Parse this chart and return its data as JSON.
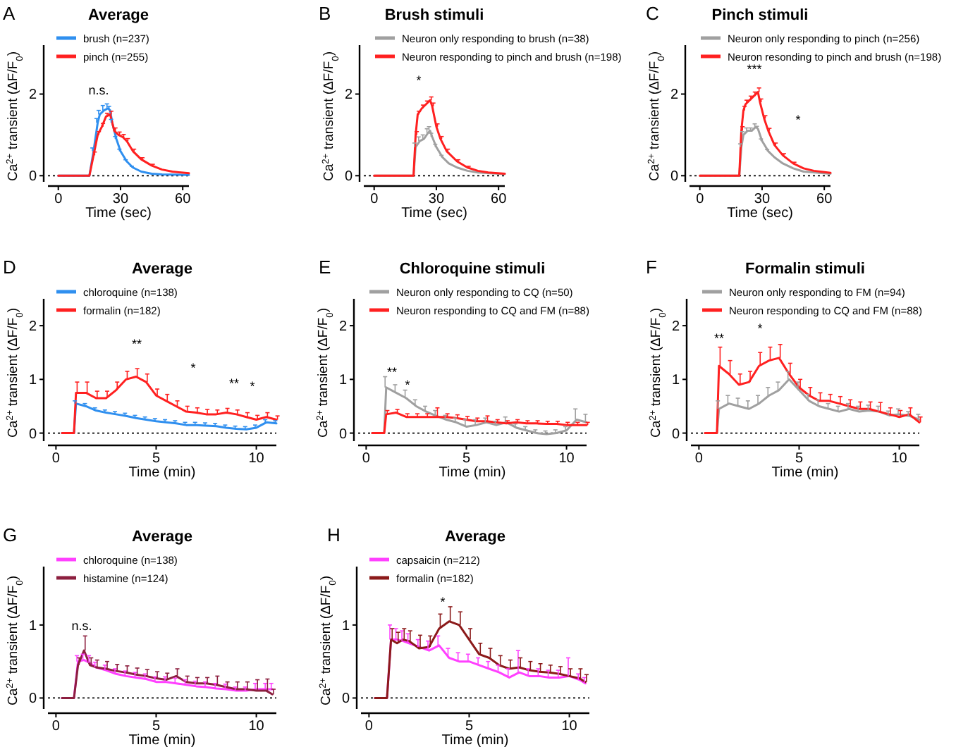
{
  "chart_data": [
    {
      "type": "line",
      "title": "Average",
      "xlabel": "Time (sec)",
      "ylabel": "Ca$^{2+}$ transient (ΔF/F$_{0}$)",
      "xlim": [
        -5,
        63
      ],
      "ylim": [
        -0.15,
        3.2
      ],
      "xticks": [
        0,
        30,
        60
      ],
      "yticks": [
        0,
        2
      ],
      "legend": "top left",
      "grid": false,
      "ref_lines": [
        {
          "axis": "y",
          "value": 0,
          "line_style": "dotted",
          "color": "#000000"
        }
      ],
      "annotations": [
        "A",
        "n.s."
      ],
      "series": [
        {
          "name": "brush (n=237)",
          "color": "#2f8fef",
          "x": [
            0,
            15,
            17,
            19,
            20,
            22,
            24,
            25,
            26,
            28,
            30,
            33,
            36,
            40,
            45,
            50,
            63
          ],
          "values": [
            0,
            0,
            0.6,
            1.3,
            1.5,
            1.6,
            1.65,
            1.6,
            1.3,
            0.9,
            0.6,
            0.35,
            0.2,
            0.1,
            0.05,
            0.03,
            0.02
          ],
          "errors": [
            null,
            null,
            [
              0.6,
              0.68
            ],
            [
              1.3,
              1.4
            ],
            [
              1.5,
              1.6
            ],
            [
              1.6,
              1.72
            ],
            [
              1.65,
              1.76
            ],
            [
              1.6,
              1.7
            ],
            [
              1.3,
              1.38
            ],
            [
              0.9,
              0.96
            ],
            [
              0.6,
              0.65
            ],
            [
              0.35,
              0.39
            ],
            [
              0.2,
              0.23
            ],
            null,
            null,
            null,
            null
          ]
        },
        {
          "name": "pinch (n=255)",
          "color": "#ff2020",
          "x": [
            0,
            15,
            17,
            19,
            21,
            23,
            25,
            27,
            29,
            31,
            33,
            36,
            40,
            45,
            50,
            55,
            63
          ],
          "values": [
            0,
            0,
            0.5,
            1.0,
            1.2,
            1.45,
            1.5,
            1.1,
            1.0,
            0.95,
            0.85,
            0.6,
            0.4,
            0.25,
            0.15,
            0.1,
            0.06
          ],
          "errors": [
            null,
            null,
            [
              0.5,
              0.58
            ],
            [
              1.0,
              1.08
            ],
            [
              1.2,
              1.28
            ],
            [
              1.45,
              1.53
            ],
            [
              1.5,
              1.58
            ],
            [
              1.1,
              1.17
            ],
            [
              1.0,
              1.07
            ],
            [
              0.95,
              1.01
            ],
            [
              0.85,
              0.91
            ],
            [
              0.6,
              0.65
            ],
            [
              0.4,
              0.44
            ],
            [
              0.25,
              0.28
            ],
            null,
            null,
            null
          ]
        }
      ]
    },
    {
      "type": "line",
      "title": "Brush stimuli",
      "xlabel": "Time (sec)",
      "ylabel": "Ca$^{2+}$ transient (ΔF/F$_{0}$)",
      "xlim": [
        -5,
        63
      ],
      "ylim": [
        -0.15,
        3.2
      ],
      "xticks": [
        0,
        30,
        60
      ],
      "yticks": [
        0,
        2
      ],
      "legend": "top right",
      "grid": false,
      "ref_lines": [
        {
          "axis": "y",
          "value": 0,
          "line_style": "dotted",
          "color": "#000000"
        }
      ],
      "annotations": [
        "B",
        "*"
      ],
      "series": [
        {
          "name": "Neuron only responding to brush (n=38)",
          "color": "#a0a0a0",
          "x": [
            0,
            19,
            20,
            22,
            24,
            26,
            27,
            28,
            30,
            33,
            36,
            40,
            45,
            50,
            63
          ],
          "values": [
            0,
            0,
            0.7,
            0.85,
            0.9,
            1.05,
            1.1,
            0.95,
            0.7,
            0.45,
            0.3,
            0.2,
            0.12,
            0.08,
            0.04
          ],
          "errors": [
            null,
            null,
            [
              0.7,
              0.8
            ],
            [
              0.85,
              0.95
            ],
            [
              0.9,
              1.0
            ],
            [
              1.05,
              1.15
            ],
            [
              1.1,
              1.2
            ],
            [
              0.95,
              1.04
            ],
            [
              0.7,
              0.77
            ],
            [
              0.45,
              0.5
            ],
            null,
            null,
            null,
            null,
            null
          ]
        },
        {
          "name": "Neuron responding to pinch and brush (n=198)",
          "color": "#ff2020",
          "x": [
            0,
            19,
            20,
            21,
            23,
            25,
            27,
            28,
            30,
            32,
            35,
            40,
            45,
            50,
            55,
            63
          ],
          "values": [
            0,
            0,
            1.0,
            1.5,
            1.65,
            1.75,
            1.85,
            1.7,
            1.2,
            0.9,
            0.6,
            0.35,
            0.2,
            0.12,
            0.08,
            0.05
          ],
          "errors": [
            null,
            null,
            [
              1.0,
              1.08
            ],
            [
              1.5,
              1.58
            ],
            [
              1.65,
              1.73
            ],
            [
              1.75,
              1.83
            ],
            [
              1.85,
              1.93
            ],
            [
              1.7,
              1.78
            ],
            [
              1.2,
              1.27
            ],
            [
              0.9,
              0.96
            ],
            [
              0.6,
              0.65
            ],
            [
              0.35,
              0.39
            ],
            [
              0.2,
              0.23
            ],
            null,
            null,
            null
          ]
        }
      ]
    },
    {
      "type": "line",
      "title": "Pinch stimuli",
      "xlabel": "Time (sec)",
      "ylabel": "Ca$^{2+}$ transient (ΔF/F$_{0}$)",
      "xlim": [
        -5,
        63
      ],
      "ylim": [
        -0.15,
        3.2
      ],
      "xticks": [
        0,
        30,
        60
      ],
      "yticks": [
        0,
        2
      ],
      "legend": "top right",
      "grid": false,
      "ref_lines": [
        {
          "axis": "y",
          "value": 0,
          "line_style": "dotted",
          "color": "#000000"
        }
      ],
      "annotations": [
        "C",
        "***",
        "*"
      ],
      "series": [
        {
          "name": "Neuron only responding to pinch (n=256)",
          "color": "#a0a0a0",
          "x": [
            0,
            19,
            20,
            21,
            23,
            25,
            27,
            28,
            30,
            33,
            36,
            40,
            45,
            50,
            63
          ],
          "values": [
            0,
            0,
            0.7,
            1.0,
            1.1,
            1.1,
            1.2,
            1.15,
            0.85,
            0.6,
            0.45,
            0.3,
            0.18,
            0.1,
            0.05
          ],
          "errors": [
            null,
            null,
            [
              0.7,
              0.78
            ],
            [
              1.0,
              1.08
            ],
            [
              1.1,
              1.17
            ],
            [
              1.1,
              1.17
            ],
            [
              1.2,
              1.27
            ],
            [
              1.15,
              1.21
            ],
            [
              0.85,
              0.9
            ],
            [
              0.6,
              0.64
            ],
            null,
            null,
            null,
            null,
            null
          ]
        },
        {
          "name": "Neuron resonding to pinch and brush (n=198)",
          "color": "#ff2020",
          "x": [
            0,
            19,
            20,
            21,
            22,
            24,
            26,
            28,
            29,
            31,
            33,
            36,
            40,
            45,
            50,
            55,
            63
          ],
          "values": [
            0,
            0,
            1.1,
            1.6,
            1.75,
            1.85,
            1.95,
            2.05,
            1.8,
            1.4,
            1.1,
            0.75,
            0.5,
            0.3,
            0.18,
            0.12,
            0.07
          ],
          "errors": [
            null,
            null,
            [
              1.1,
              1.2
            ],
            [
              1.6,
              1.7
            ],
            [
              1.75,
              1.85
            ],
            [
              1.85,
              1.95
            ],
            [
              1.95,
              2.05
            ],
            [
              2.05,
              2.15
            ],
            [
              1.8,
              1.88
            ],
            [
              1.4,
              1.47
            ],
            [
              1.1,
              1.16
            ],
            [
              0.75,
              0.8
            ],
            [
              0.5,
              0.54
            ],
            [
              0.3,
              0.33
            ],
            null,
            null,
            null
          ]
        }
      ]
    },
    {
      "type": "line",
      "title": "Average",
      "xlabel": "Time (min)",
      "ylabel": "Ca$^{2+}$ transient (ΔF/F$_{0}$)",
      "xlim": [
        -0.4,
        11
      ],
      "ylim": [
        -0.15,
        2.5
      ],
      "xticks": [
        0,
        5,
        10
      ],
      "yticks": [
        0,
        1,
        2
      ],
      "legend": "top left",
      "grid": false,
      "ref_lines": [
        {
          "axis": "y",
          "value": 0,
          "line_style": "dotted",
          "color": "#000000"
        }
      ],
      "annotations": [
        "D",
        "**",
        "*",
        "**",
        "*"
      ],
      "x": [
        0.3,
        0.9,
        1.0,
        1.5,
        2,
        2.5,
        3,
        3.5,
        4,
        4.5,
        5,
        5.5,
        6,
        6.5,
        7,
        7.5,
        8,
        8.5,
        9,
        9.5,
        10,
        10.5,
        11
      ],
      "series": [
        {
          "name": "chloroquine (n=138)",
          "color": "#2f8fef",
          "values": [
            0,
            0,
            0.55,
            0.5,
            0.42,
            0.38,
            0.35,
            0.32,
            0.28,
            0.25,
            0.22,
            0.2,
            0.18,
            0.15,
            0.15,
            0.14,
            0.13,
            0.1,
            0.08,
            0.07,
            0.1,
            0.2,
            0.18
          ],
          "errors": [
            null,
            null,
            [
              0.55,
              0.6
            ],
            [
              0.5,
              0.55
            ],
            [
              0.42,
              0.47
            ],
            [
              0.38,
              0.43
            ],
            [
              0.35,
              0.4
            ],
            [
              0.32,
              0.37
            ],
            [
              0.28,
              0.33
            ],
            [
              0.25,
              0.3
            ],
            [
              0.22,
              0.27
            ],
            [
              0.2,
              0.25
            ],
            [
              0.18,
              0.23
            ],
            [
              0.15,
              0.2
            ],
            [
              0.15,
              0.2
            ],
            [
              0.14,
              0.19
            ],
            [
              0.13,
              0.18
            ],
            [
              0.1,
              0.15
            ],
            [
              0.08,
              0.13
            ],
            [
              0.07,
              0.12
            ],
            [
              0.1,
              0.15
            ],
            [
              0.2,
              0.25
            ],
            [
              0.18,
              0.23
            ]
          ]
        },
        {
          "name": "formalin (n=182)",
          "color": "#ff2020",
          "values": [
            0,
            0,
            0.75,
            0.75,
            0.65,
            0.65,
            0.8,
            1.0,
            1.05,
            0.95,
            0.7,
            0.6,
            0.5,
            0.4,
            0.38,
            0.35,
            0.35,
            0.38,
            0.35,
            0.3,
            0.25,
            0.3,
            0.25
          ],
          "errors": [
            null,
            null,
            [
              0.75,
              0.95
            ],
            [
              0.75,
              0.95
            ],
            [
              0.65,
              0.78
            ],
            [
              0.65,
              0.78
            ],
            [
              0.8,
              0.95
            ],
            [
              1.0,
              1.15
            ],
            [
              1.05,
              1.2
            ],
            [
              0.95,
              1.1
            ],
            [
              0.7,
              0.82
            ],
            [
              0.6,
              0.72
            ],
            [
              0.5,
              0.6
            ],
            [
              0.4,
              0.5
            ],
            [
              0.38,
              0.47
            ],
            [
              0.35,
              0.44
            ],
            [
              0.35,
              0.43
            ],
            [
              0.38,
              0.46
            ],
            [
              0.35,
              0.43
            ],
            [
              0.3,
              0.38
            ],
            [
              0.25,
              0.33
            ],
            [
              0.3,
              0.38
            ],
            [
              0.25,
              0.32
            ]
          ]
        }
      ]
    },
    {
      "type": "line",
      "title": "Chloroquine stimuli",
      "xlabel": "Time (min)",
      "ylabel": "Ca$^{2+}$ transient (ΔF/F$_{0}$)",
      "xlim": [
        -0.4,
        11
      ],
      "ylim": [
        -0.15,
        2.5
      ],
      "xticks": [
        0,
        5,
        10
      ],
      "yticks": [
        0,
        1,
        2
      ],
      "legend": "top right",
      "grid": false,
      "ref_lines": [
        {
          "axis": "y",
          "value": 0,
          "line_style": "dotted",
          "color": "#000000"
        }
      ],
      "annotations": [
        "E",
        "**",
        "*"
      ],
      "x": [
        0.3,
        0.9,
        1.0,
        1.5,
        2,
        2.5,
        3,
        3.5,
        4,
        4.5,
        5,
        5.5,
        6,
        6.5,
        7,
        7.5,
        8,
        8.5,
        9,
        9.5,
        10,
        10.5,
        11
      ],
      "series": [
        {
          "name": "Neuron only responding to CQ (n=50)",
          "color": "#a0a0a0",
          "values": [
            0,
            0,
            0.85,
            0.75,
            0.65,
            0.5,
            0.4,
            0.32,
            0.25,
            0.2,
            0.12,
            0.15,
            0.2,
            0.15,
            0.2,
            0.1,
            0.05,
            0,
            -0.02,
            0,
            0.05,
            0.25,
            0.2
          ],
          "errors": [
            null,
            null,
            [
              0.85,
              1.05
            ],
            [
              0.75,
              0.9
            ],
            [
              0.65,
              0.8
            ],
            [
              0.5,
              0.62
            ],
            [
              0.4,
              0.5
            ],
            [
              0.32,
              0.42
            ],
            [
              0.25,
              0.33
            ],
            [
              0.2,
              0.28
            ],
            [
              0.12,
              0.25
            ],
            [
              0.15,
              0.25
            ],
            [
              0.2,
              0.28
            ],
            [
              0.15,
              0.22
            ],
            [
              0.2,
              0.3
            ],
            [
              0.1,
              0.17
            ],
            [
              0.05,
              0.12
            ],
            [
              0,
              0.06
            ],
            [
              -0.02,
              0.04
            ],
            [
              0,
              0.06
            ],
            [
              0.05,
              0.12
            ],
            [
              0.25,
              0.45
            ],
            [
              0.2,
              0.35
            ]
          ]
        },
        {
          "name": "Neuron responding to CQ and FM (n=88)",
          "color": "#ff2020",
          "values": [
            0,
            0,
            0.35,
            0.38,
            0.3,
            0.3,
            0.3,
            0.3,
            0.3,
            0.28,
            0.25,
            0.22,
            0.22,
            0.2,
            0.18,
            0.2,
            0.18,
            0.18,
            0.17,
            0.17,
            0.15,
            0.15,
            0.15
          ],
          "errors": [
            null,
            null,
            [
              0.35,
              0.42
            ],
            [
              0.38,
              0.44
            ],
            [
              0.3,
              0.36
            ],
            [
              0.3,
              0.36
            ],
            [
              0.3,
              0.36
            ],
            [
              0.3,
              0.47
            ],
            [
              0.3,
              0.36
            ],
            [
              0.28,
              0.34
            ],
            [
              0.25,
              0.31
            ],
            [
              0.22,
              0.28
            ],
            [
              0.22,
              0.32
            ],
            [
              0.2,
              0.25
            ],
            [
              0.18,
              0.23
            ],
            [
              0.2,
              0.25
            ],
            [
              0.18,
              0.23
            ],
            [
              0.18,
              0.23
            ],
            [
              0.17,
              0.22
            ],
            [
              0.17,
              0.22
            ],
            [
              0.15,
              0.2
            ],
            [
              0.15,
              0.2
            ],
            [
              0.15,
              0.2
            ]
          ]
        }
      ]
    },
    {
      "type": "line",
      "title": "Formalin stimuli",
      "xlabel": "Time (min)",
      "ylabel": "Ca$^{2+}$ transient (ΔF/F$_{0}$)",
      "xlim": [
        -0.4,
        11
      ],
      "ylim": [
        -0.15,
        2.5
      ],
      "xticks": [
        0,
        5,
        10
      ],
      "yticks": [
        0,
        1,
        2
      ],
      "legend": "top right",
      "grid": false,
      "ref_lines": [
        {
          "axis": "y",
          "value": 0,
          "line_style": "dotted",
          "color": "#000000"
        }
      ],
      "annotations": [
        "F",
        "**",
        "*"
      ],
      "x": [
        0.3,
        0.9,
        1.0,
        1.5,
        2,
        2.5,
        3,
        3.5,
        4,
        4.5,
        5,
        5.5,
        6,
        6.5,
        7,
        7.5,
        8,
        8.5,
        9,
        9.5,
        10,
        10.5,
        11
      ],
      "series": [
        {
          "name": "Neuron only responding to FM (n=94)",
          "color": "#a0a0a0",
          "values": [
            0,
            0,
            0.45,
            0.55,
            0.5,
            0.45,
            0.55,
            0.7,
            0.8,
            1.0,
            0.8,
            0.6,
            0.5,
            0.45,
            0.4,
            0.45,
            0.4,
            0.42,
            0.4,
            0.33,
            0.35,
            0.32,
            0.25
          ],
          "errors": [
            null,
            null,
            [
              0.45,
              0.6
            ],
            [
              0.55,
              0.7
            ],
            [
              0.5,
              0.65
            ],
            [
              0.45,
              0.6
            ],
            [
              0.55,
              0.7
            ],
            [
              0.7,
              0.85
            ],
            [
              0.8,
              0.95
            ],
            [
              1.0,
              1.15
            ],
            [
              0.8,
              0.95
            ],
            [
              0.6,
              0.72
            ],
            [
              0.5,
              0.62
            ],
            [
              0.45,
              0.55
            ],
            [
              0.4,
              0.5
            ],
            [
              0.45,
              0.55
            ],
            [
              0.4,
              0.5
            ],
            [
              0.42,
              0.52
            ],
            [
              0.4,
              0.5
            ],
            [
              0.33,
              0.41
            ],
            [
              0.35,
              0.45
            ],
            [
              0.32,
              0.4
            ],
            [
              0.25,
              0.35
            ]
          ]
        },
        {
          "name": "Neuron responding to CQ and FM (n=88)",
          "color": "#ff2020",
          "values": [
            0,
            0,
            1.25,
            1.1,
            0.9,
            0.95,
            1.25,
            1.35,
            1.4,
            1.1,
            0.85,
            0.7,
            0.6,
            0.6,
            0.55,
            0.5,
            0.45,
            0.45,
            0.4,
            0.35,
            0.3,
            0.35,
            0.2
          ],
          "errors": [
            null,
            null,
            [
              1.25,
              1.6
            ],
            [
              1.1,
              1.35
            ],
            [
              0.9,
              1.1
            ],
            [
              0.95,
              1.15
            ],
            [
              1.25,
              1.5
            ],
            [
              1.35,
              1.6
            ],
            [
              1.4,
              1.65
            ],
            [
              1.1,
              1.3
            ],
            [
              0.85,
              1.0
            ],
            [
              0.7,
              0.85
            ],
            [
              0.6,
              0.75
            ],
            [
              0.6,
              0.72
            ],
            [
              0.55,
              0.68
            ],
            [
              0.5,
              0.62
            ],
            [
              0.45,
              0.58
            ],
            [
              0.45,
              0.58
            ],
            [
              0.4,
              0.57
            ],
            [
              0.35,
              0.47
            ],
            [
              0.3,
              0.42
            ],
            [
              0.35,
              0.47
            ],
            [
              0.2,
              0.3
            ]
          ]
        }
      ]
    },
    {
      "type": "line",
      "title": "Average",
      "xlabel": "Time (min)",
      "ylabel": "Ca$^{2+}$ transient (ΔF/F$_{0}$)",
      "xlim": [
        -0.4,
        11
      ],
      "ylim": [
        -0.15,
        1.8
      ],
      "xticks": [
        0,
        5,
        10
      ],
      "yticks": [
        0,
        1
      ],
      "legend": "top left",
      "grid": false,
      "ref_lines": [
        {
          "axis": "y",
          "value": 0,
          "line_style": "dotted",
          "color": "#000000"
        }
      ],
      "annotations": [
        "G",
        "n.s."
      ],
      "x": [
        0.3,
        0.9,
        1.1,
        1.4,
        1.7,
        2,
        2.5,
        3,
        3.5,
        4,
        4.5,
        5,
        5.5,
        6,
        6.5,
        7,
        7.5,
        8,
        8.5,
        9,
        9.5,
        10,
        10.5,
        10.8
      ],
      "series": [
        {
          "name": "chloroquine (n=138)",
          "color": "#ff40ff",
          "values": [
            0,
            0,
            0.5,
            0.52,
            0.48,
            0.42,
            0.38,
            0.33,
            0.3,
            0.28,
            0.26,
            0.22,
            0.22,
            0.2,
            0.18,
            0.16,
            0.15,
            0.13,
            0.12,
            0.1,
            0.1,
            0.12,
            0.12,
            0.12
          ],
          "errors": [
            null,
            null,
            [
              0.5,
              0.58
            ],
            [
              0.52,
              0.6
            ],
            [
              0.48,
              0.58
            ],
            [
              0.42,
              0.49
            ],
            [
              0.38,
              0.45
            ],
            [
              0.33,
              0.4
            ],
            [
              0.3,
              0.37
            ],
            [
              0.28,
              0.35
            ],
            [
              0.26,
              0.33
            ],
            [
              0.22,
              0.29
            ],
            [
              0.22,
              0.29
            ],
            [
              0.2,
              0.27
            ],
            [
              0.18,
              0.25
            ],
            [
              0.16,
              0.23
            ],
            [
              0.15,
              0.22
            ],
            [
              0.13,
              0.2
            ],
            [
              0.12,
              0.19
            ],
            [
              0.1,
              0.15
            ],
            [
              0.1,
              0.15
            ],
            [
              0.12,
              0.2
            ],
            [
              0.12,
              0.2
            ],
            [
              0.12,
              0.2
            ]
          ]
        },
        {
          "name": "histamine (n=124)",
          "color": "#8c1f3f",
          "values": [
            0,
            0,
            0.45,
            0.65,
            0.45,
            0.42,
            0.4,
            0.37,
            0.35,
            0.32,
            0.3,
            0.27,
            0.25,
            0.3,
            0.22,
            0.2,
            0.2,
            0.18,
            0.15,
            0.12,
            0.12,
            0.1,
            0.1,
            0.05
          ],
          "errors": [
            null,
            null,
            [
              0.45,
              0.55
            ],
            [
              0.65,
              0.85
            ],
            [
              0.45,
              0.55
            ],
            [
              0.42,
              0.52
            ],
            [
              0.4,
              0.5
            ],
            [
              0.37,
              0.46
            ],
            [
              0.35,
              0.44
            ],
            [
              0.32,
              0.41
            ],
            [
              0.3,
              0.39
            ],
            [
              0.27,
              0.36
            ],
            [
              0.25,
              0.34
            ],
            [
              0.3,
              0.4
            ],
            [
              0.22,
              0.3
            ],
            [
              0.2,
              0.28
            ],
            [
              0.2,
              0.28
            ],
            [
              0.18,
              0.3
            ],
            [
              0.15,
              0.22
            ],
            [
              0.12,
              0.22
            ],
            [
              0.12,
              0.22
            ],
            [
              0.1,
              0.25
            ],
            [
              0.1,
              0.26
            ],
            [
              0.05,
              0.12
            ]
          ]
        }
      ]
    },
    {
      "type": "line",
      "title": "Average",
      "xlabel": "Time (min)",
      "ylabel": "Ca$^{2+}$ transient (ΔF/F$_{0}$)",
      "xlim": [
        -0.4,
        11
      ],
      "ylim": [
        -0.15,
        1.8
      ],
      "xticks": [
        0,
        5,
        10
      ],
      "yticks": [
        0,
        1
      ],
      "legend": "top left",
      "grid": false,
      "ref_lines": [
        {
          "axis": "y",
          "value": 0,
          "line_style": "dotted",
          "color": "#000000"
        }
      ],
      "annotations": [
        "H",
        "*"
      ],
      "x": [
        0.3,
        0.9,
        1.1,
        1.4,
        1.7,
        2,
        2.5,
        3,
        3.5,
        4,
        4.5,
        5,
        5.5,
        6,
        6.5,
        7,
        7.5,
        8,
        8.5,
        9,
        9.5,
        10,
        10.5,
        10.8
      ],
      "series": [
        {
          "name": "capsaicin (n=212)",
          "color": "#ff40ff",
          "values": [
            0,
            0,
            0.8,
            0.8,
            0.78,
            0.75,
            0.7,
            0.65,
            0.72,
            0.55,
            0.5,
            0.5,
            0.45,
            0.4,
            0.35,
            0.28,
            0.35,
            0.3,
            0.3,
            0.28,
            0.28,
            0.3,
            0.25,
            0.2
          ],
          "errors": [
            null,
            null,
            [
              0.8,
              1.0
            ],
            [
              0.8,
              0.95
            ],
            [
              0.78,
              0.92
            ],
            [
              0.75,
              0.88
            ],
            [
              0.7,
              0.8
            ],
            [
              0.65,
              0.78
            ],
            [
              0.72,
              0.85
            ],
            [
              0.55,
              0.68
            ],
            [
              0.5,
              0.62
            ],
            [
              0.5,
              0.6
            ],
            [
              0.45,
              0.55
            ],
            [
              0.4,
              0.5
            ],
            [
              0.35,
              0.45
            ],
            [
              0.28,
              0.4
            ],
            [
              0.35,
              0.65
            ],
            [
              0.3,
              0.4
            ],
            [
              0.3,
              0.4
            ],
            [
              0.28,
              0.38
            ],
            [
              0.28,
              0.38
            ],
            [
              0.3,
              0.55
            ],
            [
              0.25,
              0.33
            ],
            [
              0.2,
              0.28
            ]
          ]
        },
        {
          "name": "formalin (n=182)",
          "color": "#8b1a1a",
          "values": [
            0,
            0,
            0.8,
            0.75,
            0.8,
            0.78,
            0.68,
            0.7,
            0.95,
            1.05,
            1.0,
            0.8,
            0.6,
            0.55,
            0.45,
            0.4,
            0.42,
            0.38,
            0.36,
            0.35,
            0.33,
            0.3,
            0.27,
            0.22
          ],
          "errors": [
            null,
            null,
            [
              0.8,
              0.95
            ],
            [
              0.75,
              0.9
            ],
            [
              0.8,
              0.95
            ],
            [
              0.78,
              0.92
            ],
            [
              0.68,
              0.86
            ],
            [
              0.7,
              0.85
            ],
            [
              0.95,
              1.15
            ],
            [
              1.05,
              1.25
            ],
            [
              1.0,
              1.18
            ],
            [
              0.8,
              0.95
            ],
            [
              0.6,
              0.75
            ],
            [
              0.55,
              0.68
            ],
            [
              0.45,
              0.58
            ],
            [
              0.4,
              0.52
            ],
            [
              0.42,
              0.55
            ],
            [
              0.38,
              0.5
            ],
            [
              0.36,
              0.47
            ],
            [
              0.35,
              0.45
            ],
            [
              0.33,
              0.43
            ],
            [
              0.3,
              0.4
            ],
            [
              0.27,
              0.4
            ],
            [
              0.22,
              0.32
            ]
          ]
        }
      ]
    }
  ]
}
